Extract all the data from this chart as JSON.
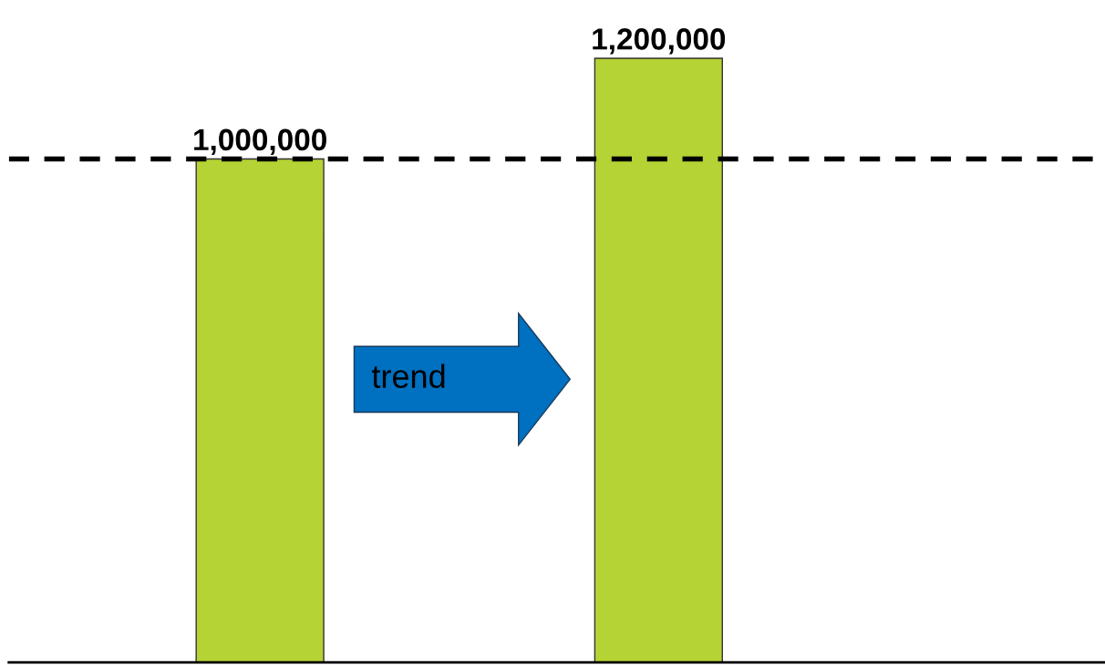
{
  "chart_data": {
    "type": "bar",
    "categories": [
      null,
      null
    ],
    "series": [
      {
        "color": "#b5d334",
        "values": [
          1000000,
          1200000
        ],
        "value_labels": [
          "1,000,000",
          "1,200,000"
        ]
      }
    ],
    "ref_lines": [
      {
        "axis": "y",
        "value": 1000000,
        "color": "#000000",
        "line_style": "dashed"
      }
    ],
    "annotations": [
      "trend"
    ]
  }
}
